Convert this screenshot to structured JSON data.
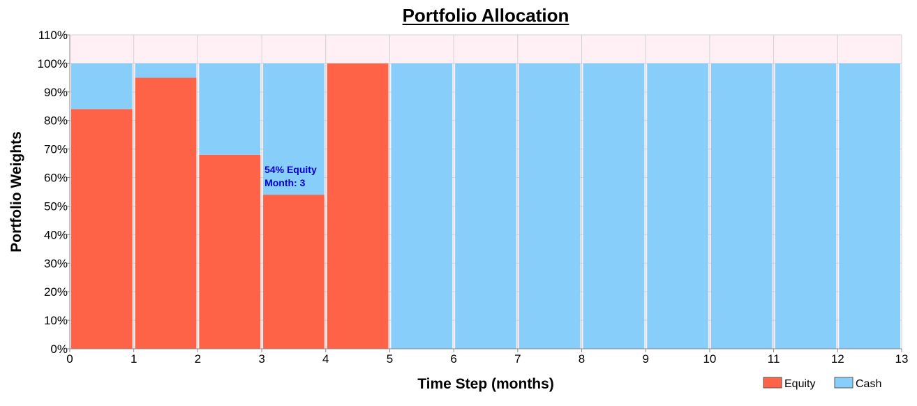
{
  "chart_data": {
    "type": "bar",
    "stacked": true,
    "title": "Portfolio Allocation",
    "xlabel": "Time Step (months)",
    "ylabel": "Portfolio Weights",
    "x_ticks": [
      "0",
      "1",
      "2",
      "3",
      "4",
      "5",
      "6",
      "7",
      "8",
      "9",
      "10",
      "11",
      "12",
      "13"
    ],
    "y_ticks": [
      "0%",
      "10%",
      "20%",
      "30%",
      "40%",
      "50%",
      "60%",
      "70%",
      "80%",
      "90%",
      "100%",
      "110%"
    ],
    "ylim": [
      0,
      110
    ],
    "xlim": [
      0,
      13
    ],
    "grid": true,
    "legend_position": "bottom-right",
    "categories": [
      "0",
      "1",
      "2",
      "3",
      "4",
      "5",
      "6",
      "7",
      "8",
      "9",
      "10",
      "11",
      "12"
    ],
    "series": [
      {
        "name": "Equity",
        "color": "#ff6347",
        "values": [
          84,
          95,
          68,
          54,
          100,
          0,
          0,
          0,
          0,
          0,
          0,
          0,
          0
        ]
      },
      {
        "name": "Cash",
        "color": "#87cefa",
        "values": [
          16,
          5,
          32,
          46,
          0,
          100,
          100,
          100,
          100,
          100,
          100,
          100,
          100
        ]
      }
    ],
    "annotation": {
      "line1": "54% Equity",
      "line2": "Month: 3",
      "color": "#0000cd"
    },
    "plot_background": "#fff0f5"
  }
}
